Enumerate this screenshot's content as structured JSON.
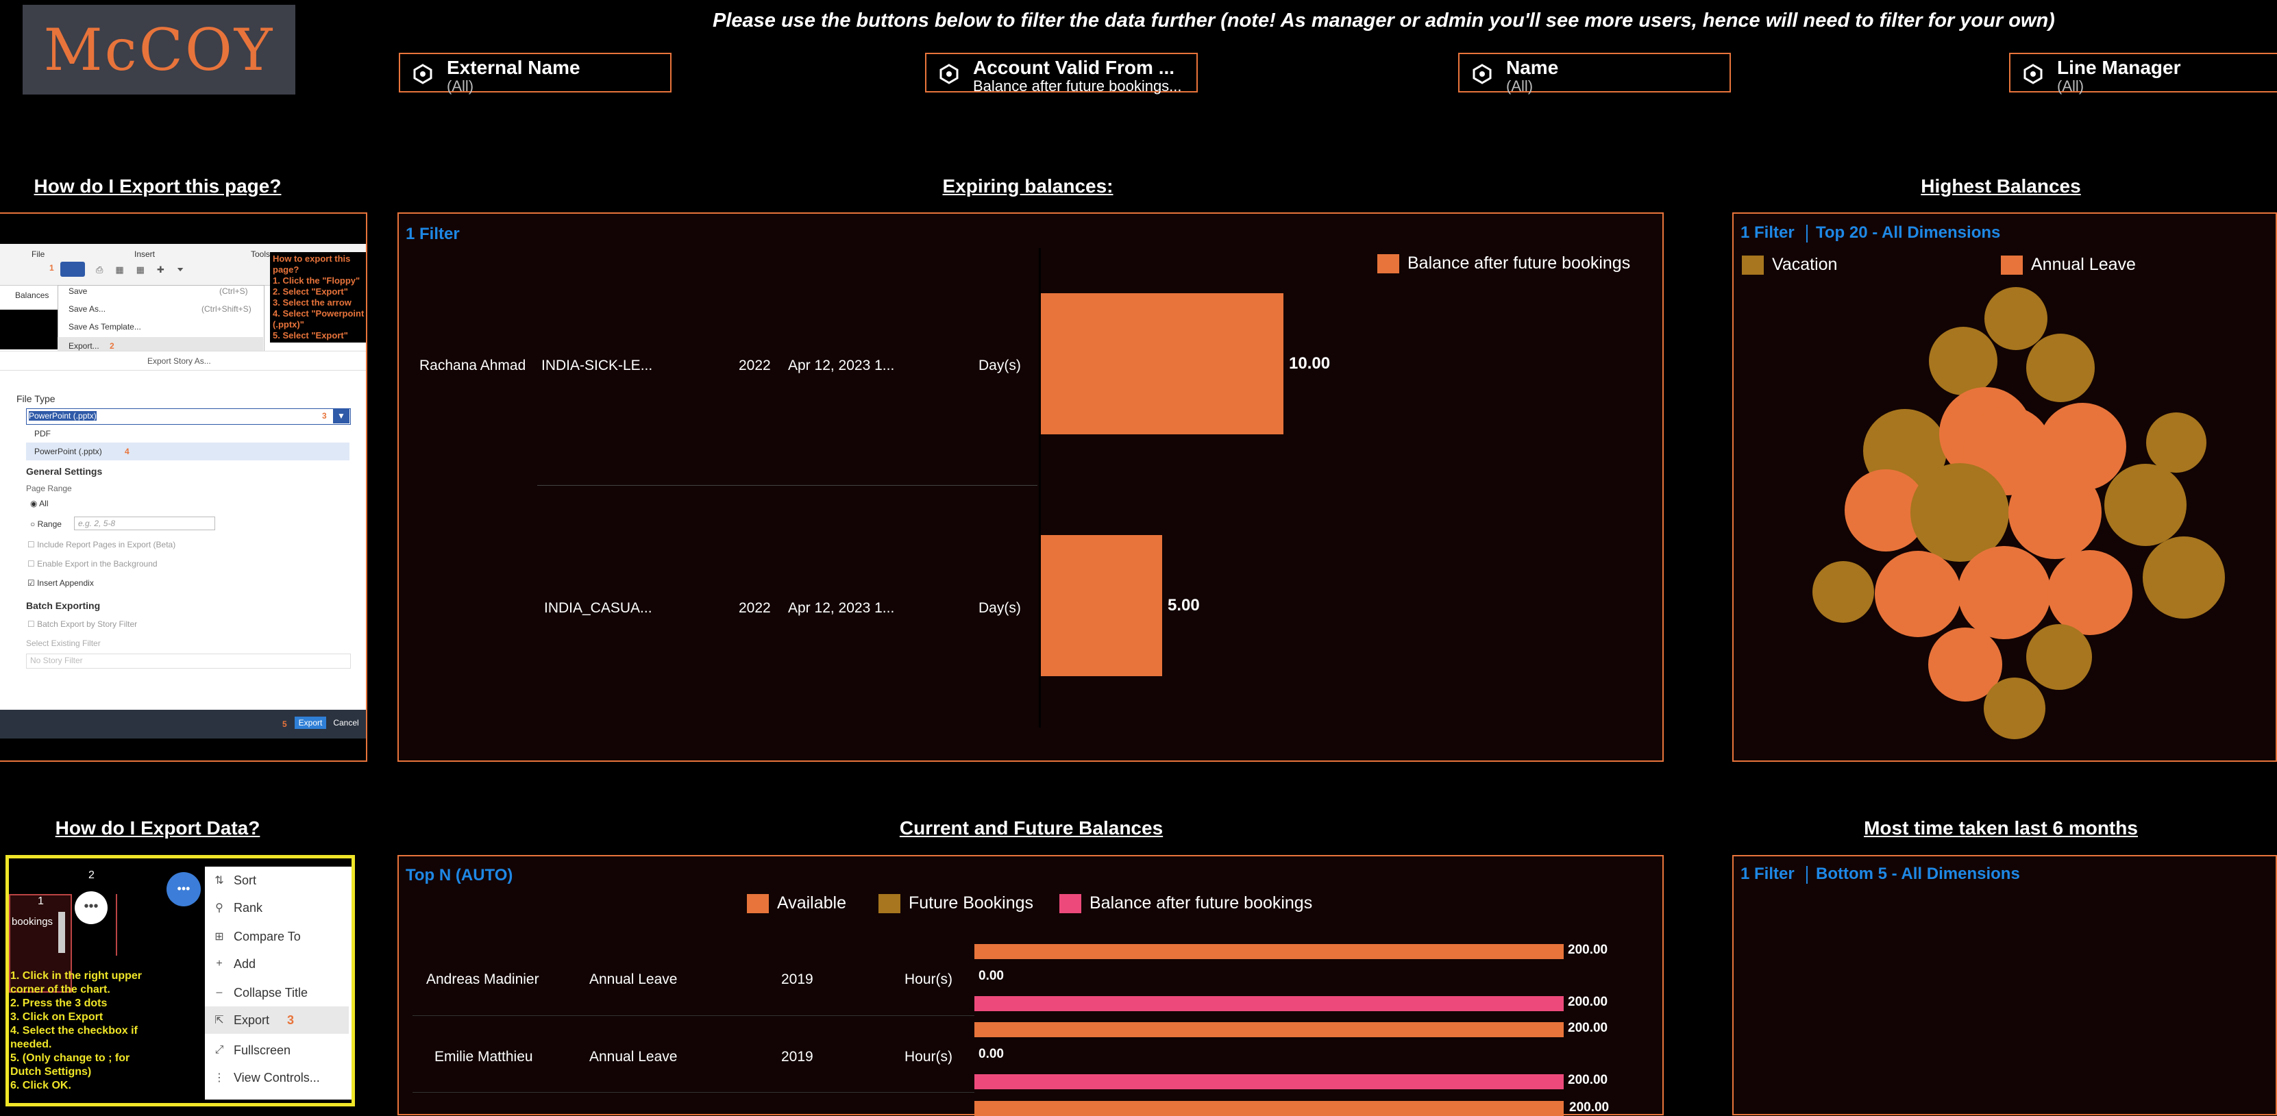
{
  "logo": {
    "text": "McCOY"
  },
  "header_note": "Please use the buttons below to filter the data further (note! As manager or admin you'll see more users, hence will need to filter for your own)",
  "filters": [
    {
      "title": "External Name",
      "value": "(All)"
    },
    {
      "title": "Account Valid From ...",
      "value": "Balance after future bookings..."
    },
    {
      "title": "Name",
      "value": "(All)"
    },
    {
      "title": "Line Manager",
      "value": "(All)"
    }
  ],
  "sections": {
    "export_page": "How do I Export this page?",
    "expiring": "Expiring balances:",
    "highest": "Highest Balances",
    "export_data": "How do I Export Data?",
    "current_future": "Current and Future Balances",
    "most_taken": "Most time taken last 6 months"
  },
  "export_page_shot": {
    "ribbon": {
      "file": "File",
      "insert": "Insert",
      "tools": "Tools",
      "balances": "Balances"
    },
    "menu": [
      "Save",
      "Save As...",
      "Save As Template...",
      "Export..."
    ],
    "shortcuts": [
      "(Ctrl+S)",
      "(Ctrl+Shift+S)"
    ],
    "instructions": "How to export this page?\n1. Click the \"Floppy\"\n2. Select \"Export\"\n3. Select the arrow\n4. Select \"Powerpoint (.pptx)\"\n5. Select \"Export\"",
    "dialog_title": "Export Story As...",
    "file_type_label": "File Type",
    "file_type_value": "PowerPoint (.pptx)",
    "options": [
      "PDF",
      "PowerPoint (.pptx)"
    ],
    "general_settings": "General Settings",
    "page_range": "Page Range",
    "all": "All",
    "range": "Range",
    "range_placeholder": "e.g. 2, 5-8",
    "checks": [
      "Include Report Pages in Export (Beta)",
      "Enable Export in the Background",
      "Insert Appendix"
    ],
    "batch_title": "Batch Exporting",
    "batch_check": "Batch Export by Story Filter",
    "select_filter": "Select Existing Filter",
    "no_filter": "No Story Filter",
    "export_btn": "Export",
    "cancel_btn": "Cancel",
    "step_nums": [
      "1",
      "2",
      "3",
      "4",
      "5"
    ]
  },
  "expiring_chart": {
    "filter_label": "1 Filter",
    "legend": "Balance after future bookings",
    "rows": [
      {
        "name": "Rachana Ahmad",
        "type": "INDIA-SICK-LE...",
        "year": "2022",
        "date": "Apr 12, 2023 1...",
        "unit": "Day(s)",
        "value_label": "10.00"
      },
      {
        "name": "",
        "type": "INDIA_CASUA...",
        "year": "2022",
        "date": "Apr 12, 2023 1...",
        "unit": "Day(s)",
        "value_label": "5.00"
      }
    ]
  },
  "chart_data": [
    {
      "type": "bar",
      "categories": [
        "Rachana Ahmad / INDIA-SICK-LE... / 2022",
        "INDIA_CASUA... / 2022"
      ],
      "series": [
        {
          "name": "Balance after future bookings",
          "values": [
            10.0,
            5.0
          ],
          "color": "#e8743b"
        }
      ],
      "xlim": [
        0,
        25
      ]
    },
    {
      "type": "scatter",
      "legend": [
        "Vacation",
        "Annual Leave"
      ],
      "colors": {
        "Vacation": "#a7761e",
        "Annual Leave": "#e8743b"
      }
    },
    {
      "type": "bar",
      "categories": [
        "Andreas Madinier / Annual Leave / 2019",
        "Emilie Matthieu / Annual Leave / 2019"
      ],
      "series": [
        {
          "name": "Available",
          "values": [
            200,
            200
          ],
          "color": "#e8743b"
        },
        {
          "name": "Future Bookings",
          "values": [
            0,
            0
          ],
          "color": "#a7761e"
        },
        {
          "name": "Balance after future bookings",
          "values": [
            200,
            200
          ],
          "color": "#ed4a7b"
        }
      ]
    }
  ],
  "highest_chart": {
    "filter_label": "1 Filter",
    "top_label": "Top 20 - All Dimensions",
    "legend": [
      "Vacation",
      "Annual Leave"
    ]
  },
  "export_data_shot": {
    "step1": "1",
    "step2": "2",
    "bookings": "bookings",
    "instructions": "1. Click in the right upper corner of the chart.\n2. Press the 3 dots\n3. Click on Export\n4. Select the checkbox if needed.\n5. (Only change to ; for Dutch Settigns)\n6. Click OK.",
    "menu": [
      "Sort",
      "Rank",
      "Compare To",
      "Add",
      "Collapse Title",
      "Export",
      "Fullscreen",
      "View Controls..."
    ],
    "export_step": "3"
  },
  "current_chart": {
    "top_label": "Top N (AUTO)",
    "legend": [
      "Available",
      "Future Bookings",
      "Balance after future bookings"
    ],
    "rows": [
      {
        "name": "Andreas Madinier",
        "type": "Annual Leave",
        "year": "2019",
        "unit": "Hour(s)",
        "labels": [
          "200.00",
          "0.00",
          "200.00"
        ]
      },
      {
        "name": "Emilie Matthieu",
        "type": "Annual Leave",
        "year": "2019",
        "unit": "Hour(s)",
        "labels": [
          "200.00",
          "0.00",
          "200.00"
        ]
      }
    ],
    "partial_label": "200.00"
  },
  "most_taken_chart": {
    "filter_label": "1 Filter",
    "bottom_label": "Bottom 5 - All Dimensions"
  }
}
